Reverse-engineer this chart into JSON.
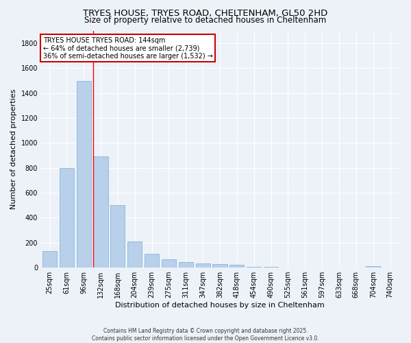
{
  "title": "TRYES HOUSE, TRYES ROAD, CHELTENHAM, GL50 2HD",
  "subtitle": "Size of property relative to detached houses in Cheltenham",
  "xlabel": "Distribution of detached houses by size in Cheltenham",
  "ylabel": "Number of detached properties",
  "categories": [
    "25sqm",
    "61sqm",
    "96sqm",
    "132sqm",
    "168sqm",
    "204sqm",
    "239sqm",
    "275sqm",
    "311sqm",
    "347sqm",
    "382sqm",
    "418sqm",
    "454sqm",
    "490sqm",
    "525sqm",
    "561sqm",
    "597sqm",
    "633sqm",
    "668sqm",
    "704sqm",
    "740sqm"
  ],
  "values": [
    130,
    800,
    1500,
    890,
    500,
    210,
    110,
    65,
    45,
    35,
    30,
    22,
    5,
    3,
    2,
    2,
    1,
    1,
    0,
    10,
    0
  ],
  "bar_color": "#b8d0ea",
  "bar_edge_color": "#7aadd4",
  "red_line_index": 3,
  "annotation_title": "TRYES HOUSE TRYES ROAD: 144sqm",
  "annotation_line1": "← 64% of detached houses are smaller (2,739)",
  "annotation_line2": "36% of semi-detached houses are larger (1,532) →",
  "annotation_box_color": "#ffffff",
  "annotation_border_color": "#cc0000",
  "ylim": [
    0,
    1900
  ],
  "yticks": [
    0,
    200,
    400,
    600,
    800,
    1000,
    1200,
    1400,
    1600,
    1800
  ],
  "background_color": "#edf2f9",
  "grid_color": "#ffffff",
  "footer_line1": "Contains HM Land Registry data © Crown copyright and database right 2025.",
  "footer_line2": "Contains public sector information licensed under the Open Government Licence v3.0.",
  "title_fontsize": 9.5,
  "subtitle_fontsize": 8.5,
  "xlabel_fontsize": 8,
  "ylabel_fontsize": 8,
  "tick_fontsize": 7,
  "footer_fontsize": 5.5,
  "annotation_fontsize": 7
}
